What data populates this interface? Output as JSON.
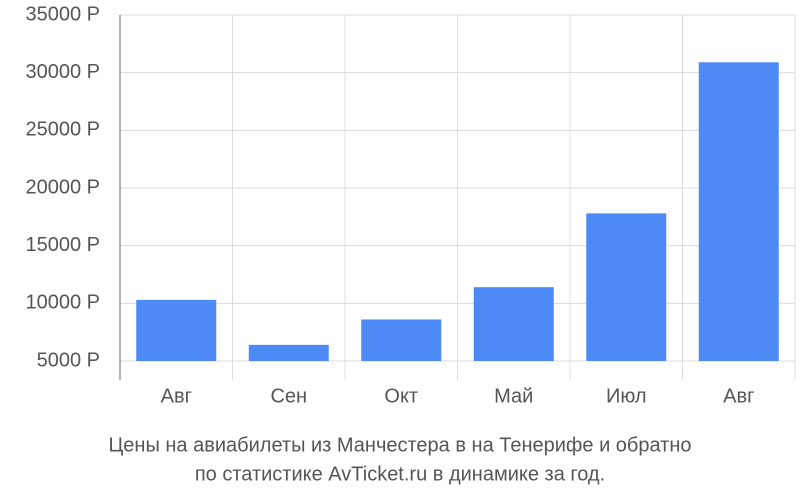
{
  "chart_data": {
    "type": "bar",
    "caption": [
      "Цены на авиабилеты из Манчестера в на Тенерифе и обратно",
      "по статистике AvTicket.ru в динамике за год."
    ],
    "categories": [
      "Авг",
      "Сен",
      "Окт",
      "Май",
      "Июл",
      "Авг"
    ],
    "values": [
      10300,
      6400,
      8600,
      11400,
      17800,
      30900
    ],
    "color": "#4d8af5",
    "ylim": [
      5000,
      35000
    ],
    "yticks": [
      {
        "value": 5000,
        "label": "5000 Р"
      },
      {
        "value": 10000,
        "label": "10000 Р"
      },
      {
        "value": 15000,
        "label": "15000 Р"
      },
      {
        "value": 20000,
        "label": "20000 Р"
      },
      {
        "value": 25000,
        "label": "25000 Р"
      },
      {
        "value": 30000,
        "label": "30000 Р"
      },
      {
        "value": 35000,
        "label": "35000 Р"
      }
    ],
    "grid": true
  }
}
